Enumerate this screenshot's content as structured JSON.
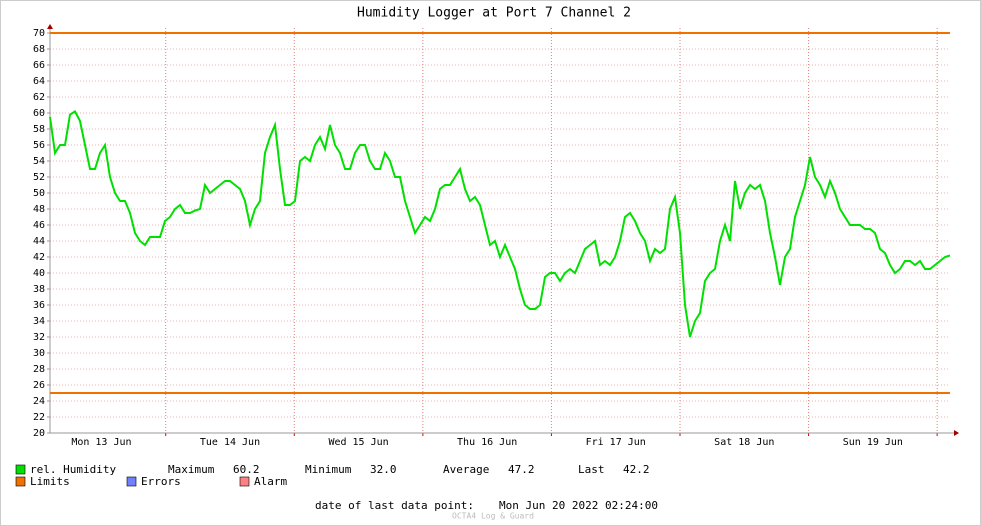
{
  "chart_data": {
    "type": "line",
    "title": "Humidity Logger at Port 7 Channel 2",
    "x": [
      0,
      56,
      112,
      168,
      224,
      280,
      336,
      392,
      448,
      504,
      560,
      616,
      672,
      728,
      784,
      840,
      896,
      952,
      1008,
      1064,
      1120,
      1176,
      1232,
      1288,
      1344,
      1400,
      1456,
      1512,
      1568,
      1624,
      1680,
      1736,
      1792,
      1848,
      1904,
      1960,
      2016,
      2072,
      2128,
      2184,
      2240,
      2296,
      2352,
      2408,
      2464,
      2520,
      2576,
      2632,
      2688,
      2744,
      2800,
      2856,
      2912,
      2968,
      3024,
      3080,
      3136,
      3192,
      3248,
      3304,
      3360,
      3416,
      3472,
      3528,
      3584,
      3640,
      3696,
      3752,
      3808,
      3864,
      3920,
      3976,
      4032,
      4088,
      4144,
      4200,
      4256,
      4312,
      4368,
      4424,
      4480,
      4536,
      4592,
      4648,
      4704,
      4760,
      4816,
      4872,
      4928,
      4984,
      5040,
      5096,
      5152,
      5208,
      5264,
      5320,
      5376,
      5432,
      5488,
      5544,
      5600,
      5656,
      5712,
      5768,
      5824,
      5880,
      5936,
      5992,
      6048,
      6104,
      6160,
      6216,
      6272,
      6328,
      6384,
      6440,
      6496,
      6552,
      6608,
      6664,
      6720,
      6776,
      6832,
      6888,
      6944,
      7000,
      7056,
      7112,
      7168,
      7224,
      7280,
      7336,
      7392,
      7448,
      7504,
      7560,
      7616,
      7672,
      7728,
      7784,
      7840,
      7896,
      7952,
      8008,
      8064,
      8120,
      8176,
      8232,
      8288,
      8344,
      8400,
      8456,
      8512,
      8568,
      8624,
      8680,
      8736,
      8792,
      8848,
      8904,
      8960,
      9016,
      9072,
      9128,
      9184,
      9240,
      9296,
      9352,
      9408,
      9464,
      9520,
      9576,
      9632,
      9688,
      9744,
      9800,
      9856,
      9912,
      9968,
      10024,
      10080
    ],
    "series": [
      {
        "name": "rel. Humidity",
        "color": "#00e000",
        "values": [
          59.5,
          55,
          56,
          56,
          59.8,
          60.2,
          59,
          56,
          53,
          53,
          55,
          56,
          52,
          50,
          49,
          49,
          47.5,
          45,
          44,
          43.5,
          44.5,
          44.5,
          44.5,
          46.5,
          47,
          48,
          48.5,
          47.5,
          47.5,
          47.8,
          48,
          51,
          50,
          50.5,
          51,
          51.5,
          51.5,
          51,
          50.5,
          49,
          46,
          48,
          49,
          55,
          57,
          58.5,
          53,
          48.5,
          48.5,
          49,
          54,
          54.5,
          54,
          56,
          57,
          55.5,
          58.5,
          56,
          55,
          53,
          53,
          55,
          56,
          56,
          54,
          53,
          53,
          55,
          54,
          52,
          52,
          49,
          47,
          45,
          46,
          47,
          46.5,
          48,
          50.5,
          51,
          51,
          52,
          53,
          50.5,
          49,
          49.5,
          48.5,
          46,
          43.5,
          44,
          42,
          43.5,
          42,
          40.5,
          38,
          36,
          35.5,
          35.5,
          36,
          39.5,
          40,
          40,
          39,
          40,
          40.5,
          40,
          41.5,
          43,
          43.5,
          44,
          41,
          41.5,
          41,
          42,
          44,
          47,
          47.5,
          46.5,
          45,
          44,
          41.5,
          43,
          42.5,
          43,
          48,
          49.5,
          45,
          36,
          32.0,
          34,
          35,
          39,
          40,
          40.5,
          44,
          46,
          44,
          51.5,
          48,
          50,
          51,
          50.5,
          51,
          49,
          45,
          42,
          38.5,
          42,
          43,
          47,
          49,
          51,
          54.5,
          52,
          51,
          49.5,
          51.5,
          50,
          48,
          47,
          46,
          46,
          46,
          45.5,
          45.5,
          45,
          43,
          42.5,
          41,
          40,
          40.5,
          41.5,
          41.5,
          41,
          41.5,
          40.5,
          40.5,
          41,
          41.5,
          42,
          42.2
        ]
      }
    ],
    "xlim": [
      0,
      10080
    ],
    "xticks": [
      {
        "value": 576,
        "label": "Mon 13 Jun"
      },
      {
        "value": 2016,
        "label": "Tue 14 Jun"
      },
      {
        "value": 3456,
        "label": "Wed 15 Jun"
      },
      {
        "value": 4896,
        "label": "Thu 16 Jun"
      },
      {
        "value": 6336,
        "label": "Fri 17 Jun"
      },
      {
        "value": 7776,
        "label": "Sat 18 Jun"
      },
      {
        "value": 9216,
        "label": "Sun 19 Jun"
      }
    ],
    "xgrid": [
      1296,
      2736,
      4176,
      5616,
      7056,
      8496,
      9936
    ],
    "ylim": [
      20,
      70
    ],
    "yticks": [
      20,
      22,
      24,
      26,
      28,
      30,
      32,
      34,
      36,
      38,
      40,
      42,
      44,
      46,
      48,
      50,
      52,
      54,
      56,
      58,
      60,
      62,
      64,
      66,
      68,
      70
    ],
    "grid": true,
    "limits": {
      "name": "Limits",
      "color": "#f07000",
      "values": [
        70,
        25
      ]
    },
    "legend_extra": [
      {
        "name": "Errors",
        "color": "#7080ff"
      },
      {
        "name": "Alarm",
        "color": "#ff8080"
      }
    ],
    "stats": [
      {
        "label": "Maximum",
        "value": "60.2"
      },
      {
        "label": "Minimum",
        "value": "32.0"
      },
      {
        "label": "Average",
        "value": "47.2"
      },
      {
        "label": "Last",
        "value": "42.2"
      }
    ],
    "footer": {
      "label": "date of last data point:",
      "value": "Mon Jun 20 2022 02:24:00"
    },
    "watermark": "OCTA4 Log & Guard"
  }
}
